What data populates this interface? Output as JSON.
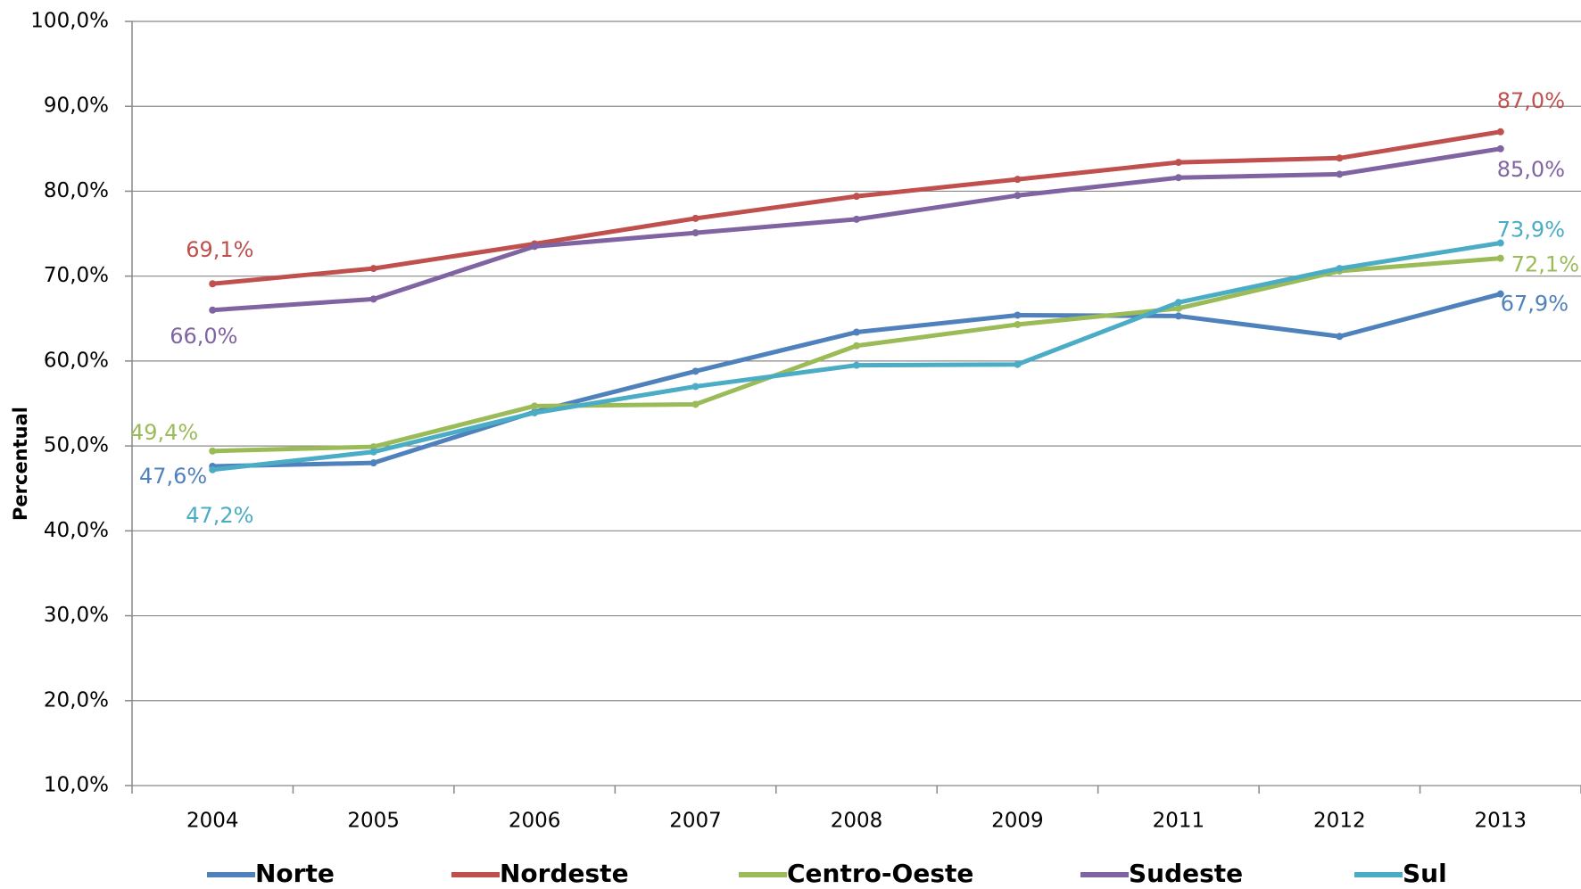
{
  "chart_data": {
    "type": "line",
    "y_label": "Percentual",
    "categories": [
      "2004",
      "2005",
      "2006",
      "2007",
      "2008",
      "2009",
      "2011",
      "2012",
      "2013"
    ],
    "series": [
      {
        "name": "Norte",
        "color": "#4f81bd",
        "values": [
          47.6,
          48.0,
          54.0,
          58.8,
          63.4,
          65.4,
          65.3,
          62.9,
          67.9
        ],
        "value_labels": [
          "47,6%",
          null,
          null,
          null,
          null,
          null,
          null,
          null,
          "67,9%"
        ]
      },
      {
        "name": "Nordeste",
        "color": "#c0504d",
        "values": [
          69.1,
          70.9,
          73.8,
          76.8,
          79.4,
          81.4,
          83.4,
          83.9,
          87.0
        ],
        "value_labels": [
          "69,1%",
          null,
          null,
          null,
          null,
          null,
          null,
          null,
          "87,0%"
        ]
      },
      {
        "name": "Centro-Oeste",
        "color": "#9bbb59",
        "values": [
          49.4,
          49.9,
          54.7,
          54.9,
          61.8,
          64.3,
          66.2,
          70.6,
          72.1
        ],
        "value_labels": [
          "49,4%",
          null,
          null,
          null,
          null,
          null,
          null,
          null,
          "72,1%"
        ]
      },
      {
        "name": "Sudeste",
        "color": "#8064a2",
        "values": [
          66.0,
          67.3,
          73.5,
          75.1,
          76.7,
          79.5,
          81.6,
          82.0,
          85.0
        ],
        "value_labels": [
          "66,0%",
          null,
          null,
          null,
          null,
          null,
          null,
          null,
          "85,0%"
        ]
      },
      {
        "name": "Sul",
        "color": "#4bacc6",
        "values": [
          47.2,
          49.3,
          53.9,
          57.0,
          59.5,
          59.6,
          66.9,
          70.9,
          73.9
        ],
        "value_labels": [
          "47,2%",
          null,
          null,
          null,
          null,
          null,
          null,
          null,
          "73,9%"
        ]
      }
    ],
    "ylim": [
      10,
      100
    ],
    "yticks": [
      {
        "value": 10,
        "label": "10,0%"
      },
      {
        "value": 20,
        "label": "20,0%"
      },
      {
        "value": 30,
        "label": "30,0%"
      },
      {
        "value": 40,
        "label": "40,0%"
      },
      {
        "value": 50,
        "label": "50,0%"
      },
      {
        "value": 60,
        "label": "60,0%"
      },
      {
        "value": 70,
        "label": "70,0%"
      },
      {
        "value": 80,
        "label": "80,0%"
      },
      {
        "value": 90,
        "label": "90,0%"
      },
      {
        "value": 100,
        "label": "100,0%"
      }
    ],
    "grid": true,
    "legend": "bottom"
  }
}
